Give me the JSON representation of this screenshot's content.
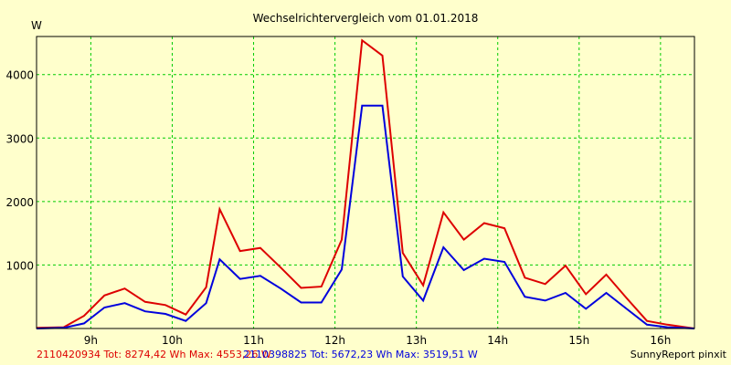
{
  "chart_data": {
    "type": "line",
    "title": "Wechselrichtervergleich vom 01.01.2018",
    "ylabel": "W",
    "xlabel": "",
    "xlim": [
      8.333,
      16.417
    ],
    "ylim": [
      0,
      4600
    ],
    "x_ticks": [
      9,
      10,
      11,
      12,
      13,
      14,
      15,
      16
    ],
    "x_tick_labels": [
      "9h",
      "10h",
      "11h",
      "12h",
      "13h",
      "14h",
      "15h",
      "16h"
    ],
    "y_ticks": [
      1000,
      2000,
      3000,
      4000
    ],
    "y_tick_labels": [
      "1000",
      "2000",
      "3000",
      "4000"
    ],
    "grid": true,
    "legend_position": "bottom",
    "series": [
      {
        "name": "2110420934",
        "legend_text": "2110420934 Tot: 8274,42 Wh Max: 4553,26 W",
        "color": "#dd0000",
        "x": [
          8.333,
          8.667,
          8.917,
          9.167,
          9.417,
          9.667,
          9.917,
          10.167,
          10.417,
          10.583,
          10.833,
          11.083,
          11.333,
          11.583,
          11.833,
          12.083,
          12.333,
          12.583,
          12.833,
          13.083,
          13.333,
          13.583,
          13.833,
          14.083,
          14.333,
          14.583,
          14.833,
          15.083,
          15.333,
          15.583,
          15.833,
          16.083,
          16.417
        ],
        "y": [
          10,
          20,
          200,
          520,
          630,
          420,
          370,
          220,
          650,
          1880,
          1220,
          1270,
          960,
          640,
          660,
          1400,
          4540,
          4300,
          1190,
          680,
          1830,
          1400,
          1660,
          1580,
          800,
          700,
          990,
          540,
          850,
          480,
          120,
          60,
          0
        ]
      },
      {
        "name": "2110398825",
        "legend_text": "2110398825 Tot: 5672,23 Wh Max: 3519,51 W",
        "color": "#0000dd",
        "x": [
          8.333,
          8.667,
          8.917,
          9.167,
          9.417,
          9.667,
          9.917,
          10.167,
          10.417,
          10.583,
          10.833,
          11.083,
          11.333,
          11.583,
          11.833,
          12.083,
          12.333,
          12.583,
          12.833,
          13.083,
          13.333,
          13.583,
          13.833,
          14.083,
          14.333,
          14.583,
          14.833,
          15.083,
          15.333,
          15.583,
          15.833,
          16.083,
          16.417
        ],
        "y": [
          0,
          10,
          80,
          330,
          400,
          270,
          230,
          120,
          400,
          1090,
          780,
          830,
          630,
          410,
          410,
          930,
          3510,
          3510,
          820,
          440,
          1280,
          920,
          1100,
          1050,
          500,
          440,
          560,
          310,
          560,
          310,
          60,
          20,
          0
        ]
      }
    ],
    "footer_right": "SunnyReport pinxit"
  },
  "colors": {
    "background": "#ffffcc",
    "grid": "#00cc00",
    "series1": "#dd0000",
    "series2": "#0000dd"
  }
}
